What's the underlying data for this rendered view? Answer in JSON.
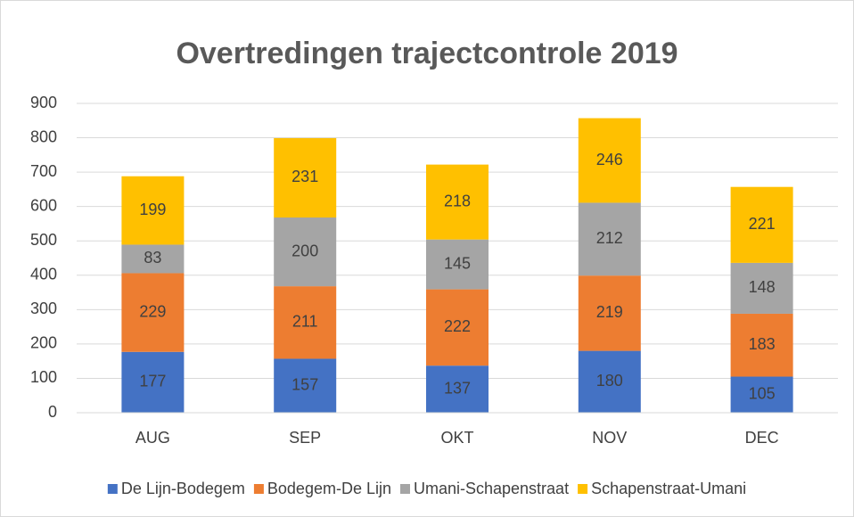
{
  "chart_data": {
    "type": "bar",
    "stacked": true,
    "title": "Overtredingen trajectcontrole  2019",
    "categories": [
      "AUG",
      "SEP",
      "OKT",
      "NOV",
      "DEC"
    ],
    "series": [
      {
        "name": "De Lijn-Bodegem",
        "color": "#4472c4",
        "values": [
          177,
          157,
          137,
          180,
          105
        ]
      },
      {
        "name": "Bodegem-De Lijn",
        "color": "#ed7d31",
        "values": [
          229,
          211,
          222,
          219,
          183
        ]
      },
      {
        "name": "Umani-Schapenstraat",
        "color": "#a5a5a5",
        "values": [
          83,
          200,
          145,
          212,
          148
        ]
      },
      {
        "name": "Schapenstraat-Umani",
        "color": "#ffc000",
        "values": [
          199,
          231,
          218,
          246,
          221
        ]
      }
    ],
    "ylim": [
      0,
      900
    ],
    "yticks": [
      0,
      100,
      200,
      300,
      400,
      500,
      600,
      700,
      800,
      900
    ],
    "grid": true,
    "legend": "bottom",
    "data_labels": true
  }
}
